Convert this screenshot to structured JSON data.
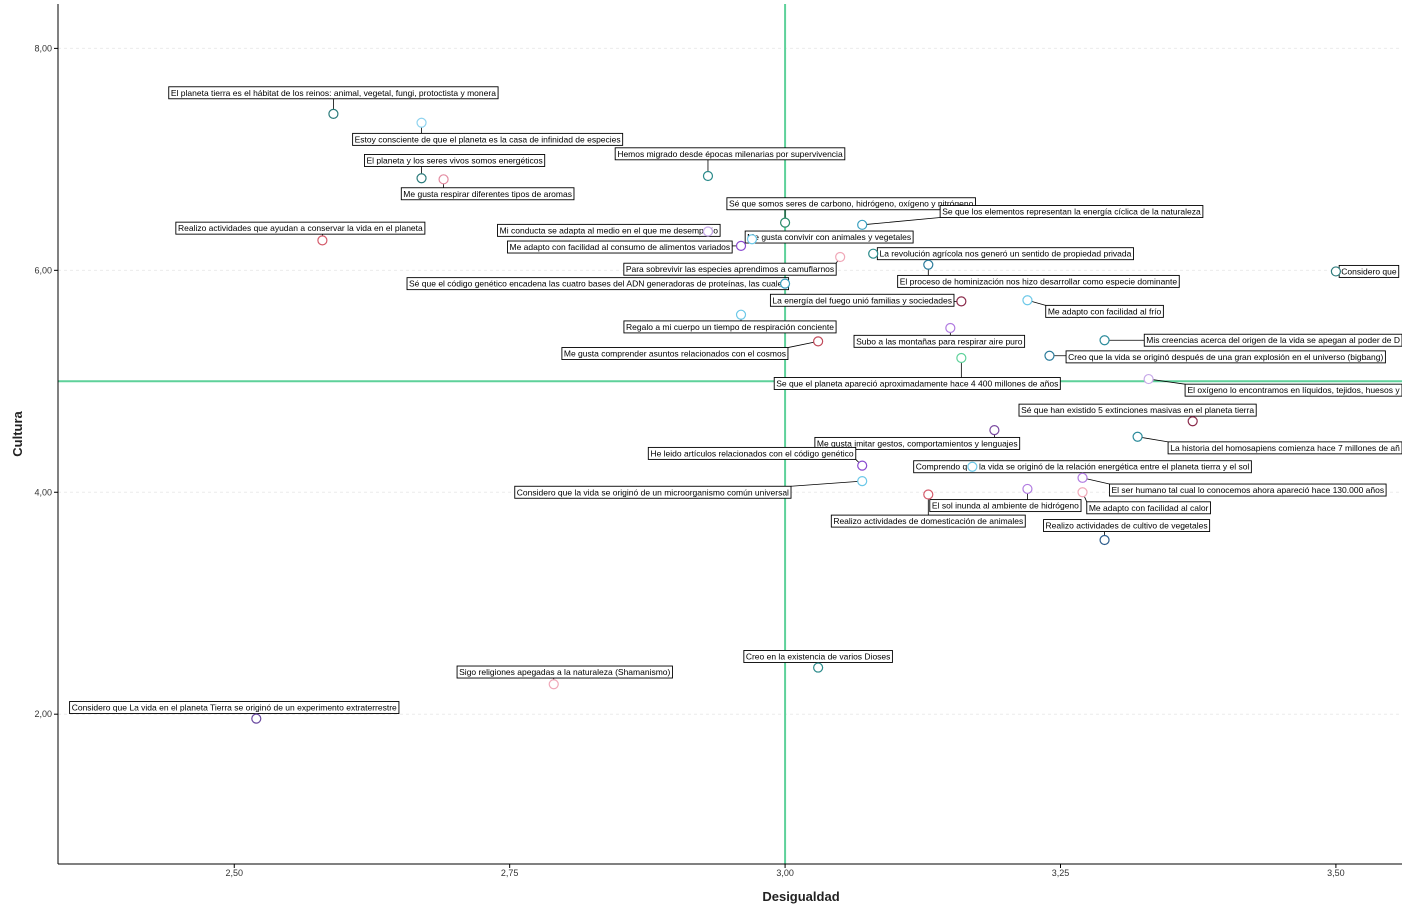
{
  "chart_data": {
    "type": "scatter",
    "xlabel": "Desigualdad",
    "ylabel": "Cultura",
    "xlim": [
      2.34,
      3.56
    ],
    "ylim": [
      0.65,
      8.4
    ],
    "x_ticks": [
      {
        "value": 2.5,
        "label": "2,50"
      },
      {
        "value": 2.75,
        "label": "2,75"
      },
      {
        "value": 3.0,
        "label": "3,00"
      },
      {
        "value": 3.25,
        "label": "3,25"
      },
      {
        "value": 3.5,
        "label": "3,50"
      }
    ],
    "y_ticks": [
      {
        "value": 2.0,
        "label": "2,00"
      },
      {
        "value": 4.0,
        "label": "4,00"
      },
      {
        "value": 6.0,
        "label": "6,00"
      },
      {
        "value": 8.0,
        "label": "8,00"
      }
    ],
    "grid": false,
    "reference_lines": {
      "x": 3.0,
      "y": 5.0,
      "color": "#5ed19a"
    },
    "points": [
      {
        "x": 2.59,
        "y": 7.41,
        "color": "#2a7a7a",
        "label": "El planeta tierra es el hábitat de los reinos: animal, vegetal, fungi, protoctista y monera",
        "lx": 2.59,
        "ly": 7.6
      },
      {
        "x": 2.67,
        "y": 7.33,
        "color": "#8fd3ef",
        "label": "Estoy consciente de que el planeta es la casa de infinidad de especies",
        "lx": 2.73,
        "ly": 7.18
      },
      {
        "x": 2.67,
        "y": 6.83,
        "color": "#2a7a7a",
        "label": "El planeta y los seres vivos somos energéticos",
        "lx": 2.7,
        "ly": 6.99
      },
      {
        "x": 2.69,
        "y": 6.82,
        "color": "#e38aa0",
        "label": "Me gusta respirar diferentes tipos de aromas",
        "lx": 2.73,
        "ly": 6.69
      },
      {
        "x": 2.93,
        "y": 6.85,
        "color": "#2a8a8a",
        "label": "Hemos migrado desde épocas milenarias por supervivencia",
        "lx": 2.95,
        "ly": 7.05
      },
      {
        "x": 3.0,
        "y": 6.43,
        "color": "#2a8a6a",
        "label": "Sé que somos seres de carbono, hidrógeno, oxígeno y nitrógeno",
        "lx": 3.06,
        "ly": 6.6
      },
      {
        "x": 3.07,
        "y": 6.41,
        "color": "#3aa0c0",
        "label": "Se que los elementos representan la energía cíclica de la naturaleza",
        "lx": 3.26,
        "ly": 6.53
      },
      {
        "x": 2.58,
        "y": 6.27,
        "color": "#d45a6a",
        "label": "Realizo actividades que ayudan a conservar la vida en el planeta",
        "lx": 2.56,
        "ly": 6.38
      },
      {
        "x": 2.93,
        "y": 6.35,
        "color": "#c6a8e8",
        "label": "Mi conducta se adapta al medio en el que me desempeño",
        "lx": 2.84,
        "ly": 6.36
      },
      {
        "x": 2.97,
        "y": 6.28,
        "color": "#6cc8e8",
        "label": "Me gusta convivir con animales y vegetales",
        "lx": 3.04,
        "ly": 6.3
      },
      {
        "x": 2.96,
        "y": 6.22,
        "color": "#8a4ad0",
        "label": "Me adapto con facilidad al consumo de alimentos variados",
        "lx": 2.85,
        "ly": 6.21
      },
      {
        "x": 3.08,
        "y": 6.15,
        "color": "#2a8a8a",
        "label": "La revolución agrícola nos generó un sentido de propiedad privada",
        "lx": 3.2,
        "ly": 6.15
      },
      {
        "x": 3.05,
        "y": 6.12,
        "color": "#f0a8b8",
        "label": "Para sobrevivir las especies aprendimos a camuflarnos",
        "lx": 2.95,
        "ly": 6.01
      },
      {
        "x": 3.13,
        "y": 6.05,
        "color": "#2a7a9a",
        "label": "El proceso de hominización nos hizo desarrollar como especie dominante",
        "lx": 3.23,
        "ly": 5.9
      },
      {
        "x": 3.0,
        "y": 5.88,
        "color": "#3aa0c0",
        "label": "Sé que el código genético encadena las cuatro bases del ADN generadoras de proteínas, las cuales",
        "lx": 2.83,
        "ly": 5.88
      },
      {
        "x": 3.16,
        "y": 5.72,
        "color": "#8a2a4a",
        "label": "La energía del fuego unió familias y sociedades",
        "lx": 3.07,
        "ly": 5.73
      },
      {
        "x": 3.22,
        "y": 5.73,
        "color": "#6cc8e8",
        "label": "Me adapto con facilidad al frío",
        "lx": 3.29,
        "ly": 5.63
      },
      {
        "x": 3.5,
        "y": 5.99,
        "color": "#2a7a7a",
        "label": "Considero que",
        "lx": 3.53,
        "ly": 5.99
      },
      {
        "x": 2.96,
        "y": 5.6,
        "color": "#6cc8e8",
        "label": "Regalo a mi cuerpo un tiempo de respiración conciente",
        "lx": 2.95,
        "ly": 5.49
      },
      {
        "x": 3.15,
        "y": 5.48,
        "color": "#b07ae0",
        "label": "Subo a las montañas para respirar aire puro",
        "lx": 3.14,
        "ly": 5.36
      },
      {
        "x": 3.03,
        "y": 5.36,
        "color": "#c04a5a",
        "label": "Me gusta comprender asuntos relacionados con el cosmos",
        "lx": 2.9,
        "ly": 5.25
      },
      {
        "x": 3.29,
        "y": 5.37,
        "color": "#2a8a9a",
        "label": "Mis creencias acerca del origen de la vida se apegan al poder de D",
        "lx": 3.46,
        "ly": 5.37
      },
      {
        "x": 3.24,
        "y": 5.23,
        "color": "#2a7a9a",
        "label": "Creo que la vida se originó después de una gran explosión en el universo (bigbang)",
        "lx": 3.4,
        "ly": 5.22
      },
      {
        "x": 3.16,
        "y": 5.21,
        "color": "#5ed19a",
        "label": "Se que el planeta apareció aproximadamente hace 4 400 millones de años",
        "lx": 3.12,
        "ly": 4.98
      },
      {
        "x": 3.33,
        "y": 5.02,
        "color": "#c6a8e8",
        "label": "El oxígeno lo encontramos en líquidos, tejidos, huesos y",
        "lx": 3.47,
        "ly": 4.92
      },
      {
        "x": 3.37,
        "y": 4.64,
        "color": "#8a2a4a",
        "label": "Sé que han existido 5 extinciones masivas en el planeta tierra",
        "lx": 3.32,
        "ly": 4.74
      },
      {
        "x": 3.19,
        "y": 4.56,
        "color": "#7a4aa0",
        "label": "Me gusta imitar gestos, comportamientos y lenguajes",
        "lx": 3.12,
        "ly": 4.44
      },
      {
        "x": 3.32,
        "y": 4.5,
        "color": "#2a8a9a",
        "label": "La historia del homosapiens comienza hace 7 millones de añ",
        "lx": 3.46,
        "ly": 4.4
      },
      {
        "x": 3.07,
        "y": 4.24,
        "color": "#8a4ad0",
        "label": "He leido artículos relacionados con el código genético",
        "lx": 2.97,
        "ly": 4.35
      },
      {
        "x": 3.17,
        "y": 4.23,
        "color": "#6cc8e8",
        "label": "Comprendo que la vida se originó de la relación energética entre el planeta tierra y el sol",
        "lx": 3.27,
        "ly": 4.23
      },
      {
        "x": 3.27,
        "y": 4.13,
        "color": "#b07ae0",
        "label": "El ser humano tal cual lo conocemos ahora apareció hace 130.000 años",
        "lx": 3.42,
        "ly": 4.02
      },
      {
        "x": 3.07,
        "y": 4.1,
        "color": "#6cc8e8",
        "label": "Considero que la  vida se originó de un microorganismo común universal",
        "lx": 2.88,
        "ly": 4.0
      },
      {
        "x": 3.22,
        "y": 4.03,
        "color": "#b07ae0",
        "label": "El sol inunda al ambiente de hidrógeno",
        "lx": 3.2,
        "ly": 3.88
      },
      {
        "x": 3.27,
        "y": 4.0,
        "color": "#f0a8b8",
        "label": "Me adapto con facilidad al calor",
        "lx": 3.33,
        "ly": 3.86
      },
      {
        "x": 3.13,
        "y": 3.98,
        "color": "#d45a6a",
        "label": "Realizo actividades de domesticación de animales",
        "lx": 3.13,
        "ly": 3.74
      },
      {
        "x": 3.29,
        "y": 3.57,
        "color": "#2a5a8a",
        "label": "Realizo actividades de cultivo de vegetales",
        "lx": 3.31,
        "ly": 3.7
      },
      {
        "x": 3.03,
        "y": 2.42,
        "color": "#2a8a8a",
        "label": "Creo en la existencia de varios Dioses",
        "lx": 3.03,
        "ly": 2.52
      },
      {
        "x": 2.79,
        "y": 2.27,
        "color": "#f0a8b8",
        "label": "Sigo religiones apegadas a la naturaleza (Shamanismo)",
        "lx": 2.8,
        "ly": 2.38
      },
      {
        "x": 2.52,
        "y": 1.96,
        "color": "#6a4aa0",
        "label": "Considero que La vida en el planeta Tierra se originó de un experimento extraterrestre",
        "lx": 2.5,
        "ly": 2.06
      }
    ]
  }
}
